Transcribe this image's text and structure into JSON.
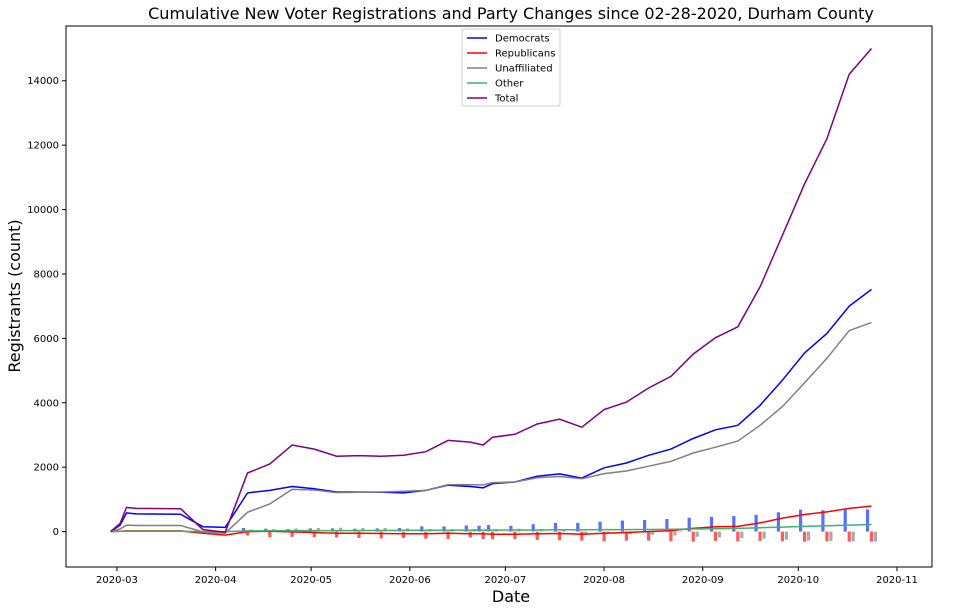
{
  "chart_data": {
    "type": "line",
    "title": "Cumulative New Voter Registrations and Party Changes since 02-28-2020, Durham County",
    "xlabel": "Date",
    "ylabel": "Registrants (count)",
    "xlim": [
      "2020-02-14",
      "2020-11-12"
    ],
    "ylim": [
      -1100,
      15700
    ],
    "x_ticks": [
      "2020-03-01",
      "2020-04-01",
      "2020-05-01",
      "2020-06-01",
      "2020-07-01",
      "2020-08-01",
      "2020-09-01",
      "2020-10-01",
      "2020-11-01"
    ],
    "x_tick_labels": [
      "2020-03",
      "2020-04",
      "2020-05",
      "2020-06",
      "2020-07",
      "2020-08",
      "2020-09",
      "2020-10",
      "2020-11"
    ],
    "y_ticks": [
      0,
      2000,
      4000,
      6000,
      8000,
      10000,
      12000,
      14000
    ],
    "grid": false,
    "legend_position": "top-center",
    "x": [
      "2020-02-28",
      "2020-03-02",
      "2020-03-04",
      "2020-03-07",
      "2020-03-21",
      "2020-03-28",
      "2020-04-04",
      "2020-04-11",
      "2020-04-18",
      "2020-04-25",
      "2020-05-02",
      "2020-05-09",
      "2020-05-16",
      "2020-05-23",
      "2020-05-30",
      "2020-06-06",
      "2020-06-13",
      "2020-06-20",
      "2020-06-24",
      "2020-06-27",
      "2020-07-04",
      "2020-07-11",
      "2020-07-18",
      "2020-07-25",
      "2020-08-01",
      "2020-08-08",
      "2020-08-15",
      "2020-08-22",
      "2020-08-29",
      "2020-09-05",
      "2020-09-12",
      "2020-09-19",
      "2020-09-26",
      "2020-10-03",
      "2020-10-10",
      "2020-10-17",
      "2020-10-24"
    ],
    "series": [
      {
        "name": "Democrats",
        "color": "#0000ff",
        "values": [
          0,
          200,
          580,
          550,
          540,
          150,
          130,
          1200,
          1280,
          1400,
          1330,
          1230,
          1230,
          1220,
          1200,
          1280,
          1440,
          1400,
          1360,
          1490,
          1540,
          1720,
          1790,
          1660,
          1980,
          2130,
          2370,
          2560,
          2890,
          3160,
          3300,
          3920,
          4700,
          5550,
          6150,
          7000,
          7520
        ]
      },
      {
        "name": "Republicans",
        "color": "#ff0000",
        "values": [
          0,
          10,
          20,
          20,
          20,
          -50,
          -110,
          0,
          10,
          -10,
          -30,
          -50,
          -50,
          -60,
          -70,
          -70,
          -50,
          -70,
          -70,
          -80,
          -80,
          -70,
          -60,
          -80,
          -50,
          -30,
          0,
          30,
          100,
          150,
          160,
          270,
          420,
          530,
          610,
          720,
          790
        ]
      },
      {
        "name": "Unaffiliated",
        "color": "#808080",
        "values": [
          0,
          80,
          200,
          190,
          190,
          -10,
          -50,
          600,
          860,
          1310,
          1290,
          1210,
          1220,
          1230,
          1250,
          1280,
          1460,
          1460,
          1450,
          1520,
          1540,
          1670,
          1710,
          1640,
          1800,
          1880,
          2030,
          2180,
          2440,
          2620,
          2810,
          3300,
          3880,
          4620,
          5380,
          6240,
          6490
        ]
      },
      {
        "name": "Other",
        "color": "#3cb371",
        "values": [
          0,
          5,
          10,
          10,
          10,
          0,
          0,
          20,
          25,
          30,
          30,
          30,
          35,
          35,
          40,
          40,
          40,
          45,
          45,
          45,
          50,
          50,
          55,
          55,
          60,
          60,
          65,
          70,
          80,
          90,
          100,
          120,
          140,
          160,
          180,
          200,
          220
        ]
      },
      {
        "name": "Total",
        "color": "#800080",
        "values": [
          0,
          250,
          750,
          720,
          710,
          60,
          -20,
          1820,
          2100,
          2690,
          2560,
          2340,
          2360,
          2340,
          2370,
          2480,
          2830,
          2780,
          2690,
          2930,
          3020,
          3340,
          3490,
          3240,
          3790,
          4020,
          4460,
          4820,
          5510,
          6020,
          6360,
          7600,
          9200,
          10800,
          12200,
          14200,
          15000
        ]
      }
    ],
    "weekly_bars": {
      "x": [
        "2020-04-11",
        "2020-04-18",
        "2020-04-25",
        "2020-05-02",
        "2020-05-09",
        "2020-05-16",
        "2020-05-23",
        "2020-05-30",
        "2020-06-06",
        "2020-06-13",
        "2020-06-20",
        "2020-06-24",
        "2020-06-27",
        "2020-07-04",
        "2020-07-11",
        "2020-07-18",
        "2020-07-25",
        "2020-08-01",
        "2020-08-08",
        "2020-08-15",
        "2020-08-22",
        "2020-08-29",
        "2020-09-05",
        "2020-09-12",
        "2020-09-19",
        "2020-09-26",
        "2020-10-03",
        "2020-10-10",
        "2020-10-17",
        "2020-10-24"
      ],
      "series": [
        {
          "name": "Democrats",
          "color": "#5a6eff",
          "values": [
            110,
            90,
            80,
            100,
            100,
            90,
            100,
            110,
            160,
            160,
            190,
            180,
            200,
            180,
            230,
            270,
            270,
            310,
            340,
            360,
            390,
            430,
            460,
            480,
            520,
            600,
            680,
            660,
            680,
            690
          ]
        },
        {
          "name": "Republicans",
          "color": "#ff5a5a",
          "values": [
            -120,
            -170,
            -160,
            -170,
            -180,
            -200,
            -210,
            -200,
            -220,
            -230,
            -180,
            -230,
            -240,
            -230,
            -260,
            -270,
            -280,
            -300,
            -280,
            -280,
            -300,
            -310,
            -290,
            -300,
            -290,
            -300,
            -310,
            -300,
            -310,
            -310
          ]
        },
        {
          "name": "Unaffiliated",
          "color": "#aaaaaa",
          "values": [
            60,
            80,
            100,
            110,
            120,
            110,
            110,
            100,
            80,
            80,
            80,
            80,
            80,
            90,
            80,
            80,
            -60,
            -60,
            -80,
            -100,
            -120,
            -160,
            -180,
            -200,
            -220,
            -250,
            -280,
            -290,
            -300,
            -310
          ]
        }
      ]
    }
  }
}
